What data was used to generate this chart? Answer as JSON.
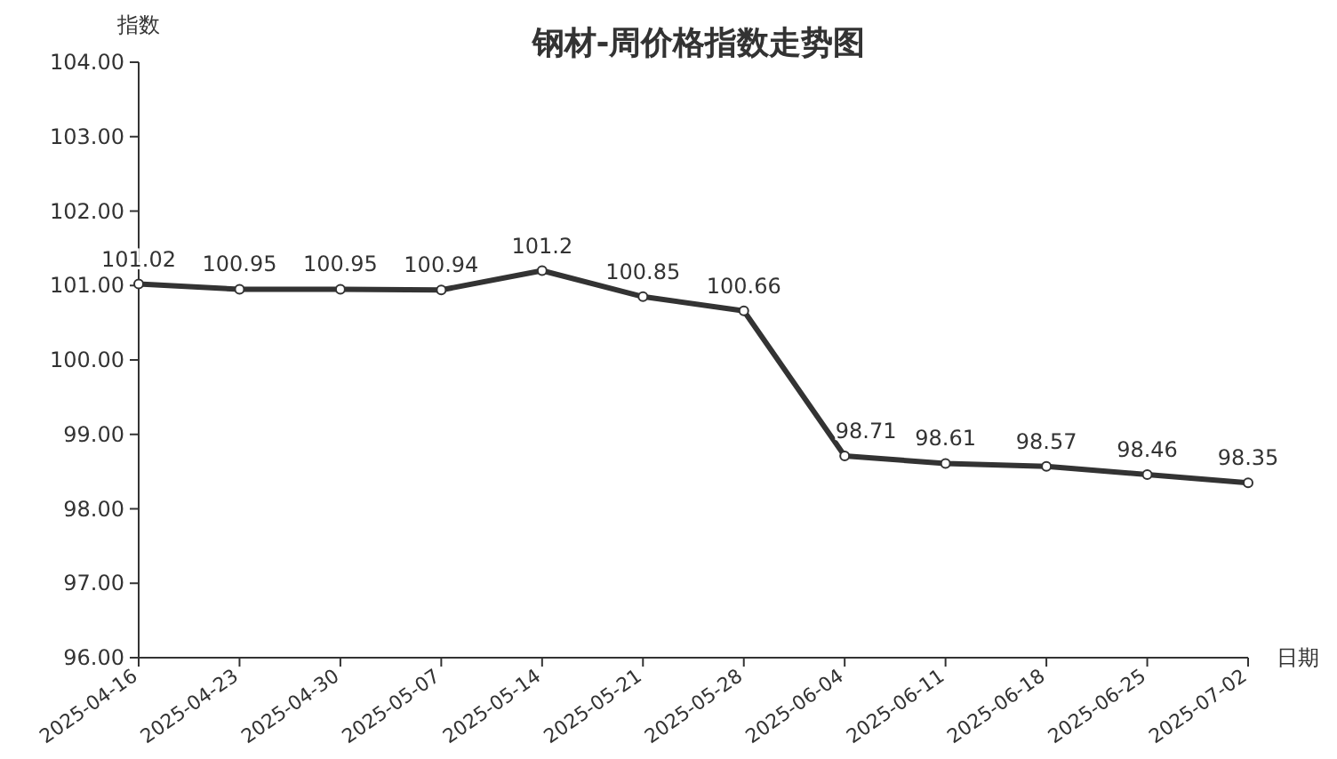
{
  "chart_data": {
    "type": "line",
    "title": "钢材-周价格指数走势图",
    "xlabel": "日期",
    "ylabel": "指数",
    "categories": [
      "2025-04-16",
      "2025-04-23",
      "2025-04-30",
      "2025-05-07",
      "2025-05-14",
      "2025-05-21",
      "2025-05-28",
      "2025-06-04",
      "2025-06-11",
      "2025-06-18",
      "2025-06-25",
      "2025-07-02"
    ],
    "series": [
      {
        "color": "#333333",
        "values": [
          101.02,
          100.95,
          100.95,
          100.94,
          101.2,
          100.85,
          100.66,
          98.71,
          98.61,
          98.57,
          98.46,
          98.35
        ]
      }
    ],
    "ylim": [
      96,
      104
    ],
    "yticks": [
      {
        "value": 96,
        "label": "96.00"
      },
      {
        "value": 97,
        "label": "97.00"
      },
      {
        "value": 98,
        "label": "98.00"
      },
      {
        "value": 99,
        "label": "99.00"
      },
      {
        "value": 100,
        "label": "100.00"
      },
      {
        "value": 101,
        "label": "101.00"
      },
      {
        "value": 102,
        "label": "102.00"
      },
      {
        "value": 103,
        "label": "103.00"
      },
      {
        "value": 104,
        "label": "104.00"
      }
    ],
    "data_labels": true,
    "marker": "circle",
    "line_style": "solid"
  }
}
